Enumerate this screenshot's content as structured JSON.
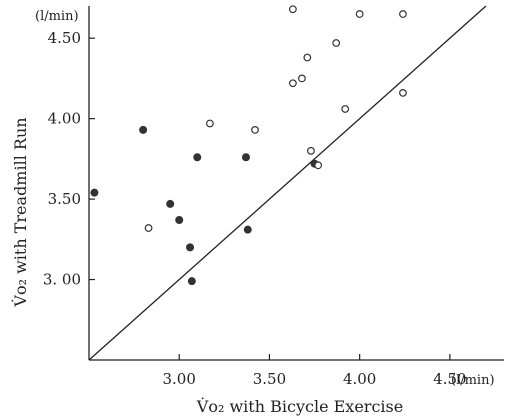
{
  "chart_data": {
    "type": "scatter",
    "xlabel": "V̇o₂ with Bicycle Exercise",
    "ylabel": "V̇o₂ with Treadmill Run",
    "x_unit": "(l/min)",
    "y_unit": "(l/min)",
    "xlim": [
      2.5,
      4.8
    ],
    "ylim": [
      2.5,
      4.7
    ],
    "x_ticks": [
      3.0,
      3.5,
      4.0,
      4.5
    ],
    "x_tick_labels": [
      "3.00",
      "3.50",
      "4.00",
      "4.50"
    ],
    "y_ticks": [
      3.0,
      3.5,
      4.0,
      4.5
    ],
    "y_tick_labels": [
      "3. 00",
      "3.50",
      "4.00",
      "4.50"
    ],
    "identity_line": true,
    "grid": false,
    "series": [
      {
        "marker": "filled",
        "color": "#333333",
        "points": [
          [
            2.53,
            3.54
          ],
          [
            2.8,
            3.93
          ],
          [
            2.95,
            3.47
          ],
          [
            3.0,
            3.37
          ],
          [
            3.06,
            3.2
          ],
          [
            3.07,
            2.99
          ],
          [
            3.1,
            3.76
          ],
          [
            3.37,
            3.76
          ],
          [
            3.38,
            3.31
          ],
          [
            3.75,
            3.72
          ]
        ]
      },
      {
        "marker": "open",
        "color": "#333333",
        "points": [
          [
            2.83,
            3.32
          ],
          [
            3.17,
            3.97
          ],
          [
            3.42,
            3.93
          ],
          [
            3.63,
            4.68
          ],
          [
            3.63,
            4.22
          ],
          [
            3.68,
            4.25
          ],
          [
            3.71,
            4.38
          ],
          [
            3.73,
            3.8
          ],
          [
            3.77,
            3.71
          ],
          [
            3.87,
            4.47
          ],
          [
            3.92,
            4.06
          ],
          [
            4.0,
            4.65
          ],
          [
            4.24,
            4.65
          ],
          [
            4.24,
            4.16
          ]
        ]
      }
    ]
  }
}
